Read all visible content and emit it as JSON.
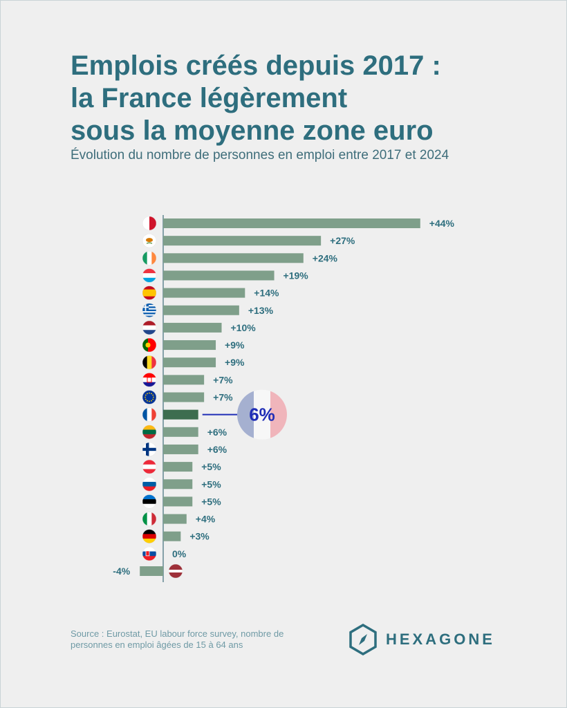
{
  "title_lines": [
    "Emplois créés depuis 2017 :",
    "la France légèrement",
    "sous la moyenne zone euro"
  ],
  "subtitle": "Évolution du nombre de personnes en emploi entre 2017 et 2024",
  "source": "Source : Eurostat, EU labour force survey, nombre de personnes en emploi âgées de 15 à 64 ans",
  "brand": "HEXAGONE",
  "colors": {
    "bar": "#7f9f8a",
    "highlight_bar": "#3d6d4f",
    "label": "#2e6e7e",
    "axis": "#3e6d7a",
    "france_blue": "#1f2db6"
  },
  "chart_data": {
    "type": "bar",
    "orientation": "horizontal",
    "categories": [
      "Malta",
      "Cyprus",
      "Ireland",
      "Luxembourg",
      "Spain",
      "Greece",
      "Netherlands",
      "Portugal",
      "Belgium",
      "Croatia",
      "Euro area",
      "France",
      "Lithuania",
      "Finland",
      "Austria",
      "Slovenia",
      "Estonia",
      "Italy",
      "Germany",
      "Slovakia",
      "Latvia"
    ],
    "flags": [
      "malta",
      "cyprus",
      "ireland",
      "luxembourg",
      "spain",
      "greece",
      "netherlands",
      "portugal",
      "belgium",
      "croatia",
      "eu",
      "france",
      "lithuania",
      "finland",
      "austria",
      "slovenia",
      "estonia",
      "italy",
      "germany",
      "slovakia",
      "latvia"
    ],
    "values": [
      44,
      27,
      24,
      19,
      14,
      13,
      10,
      9,
      9,
      7,
      7,
      6,
      6,
      6,
      5,
      5,
      5,
      4,
      3,
      0,
      -4
    ],
    "labels": [
      "+44%",
      "+27%",
      "+24%",
      "+19%",
      "+14%",
      "+13%",
      "+10%",
      "+9%",
      "+9%",
      "+7%",
      "+7%",
      "",
      "+6%",
      "+6%",
      "+5%",
      "+5%",
      "+5%",
      "+4%",
      "+3%",
      "0%",
      "-4%"
    ],
    "highlight": {
      "category": "France",
      "label": "6%"
    },
    "xlim": [
      -4,
      44
    ],
    "unit": "%"
  }
}
